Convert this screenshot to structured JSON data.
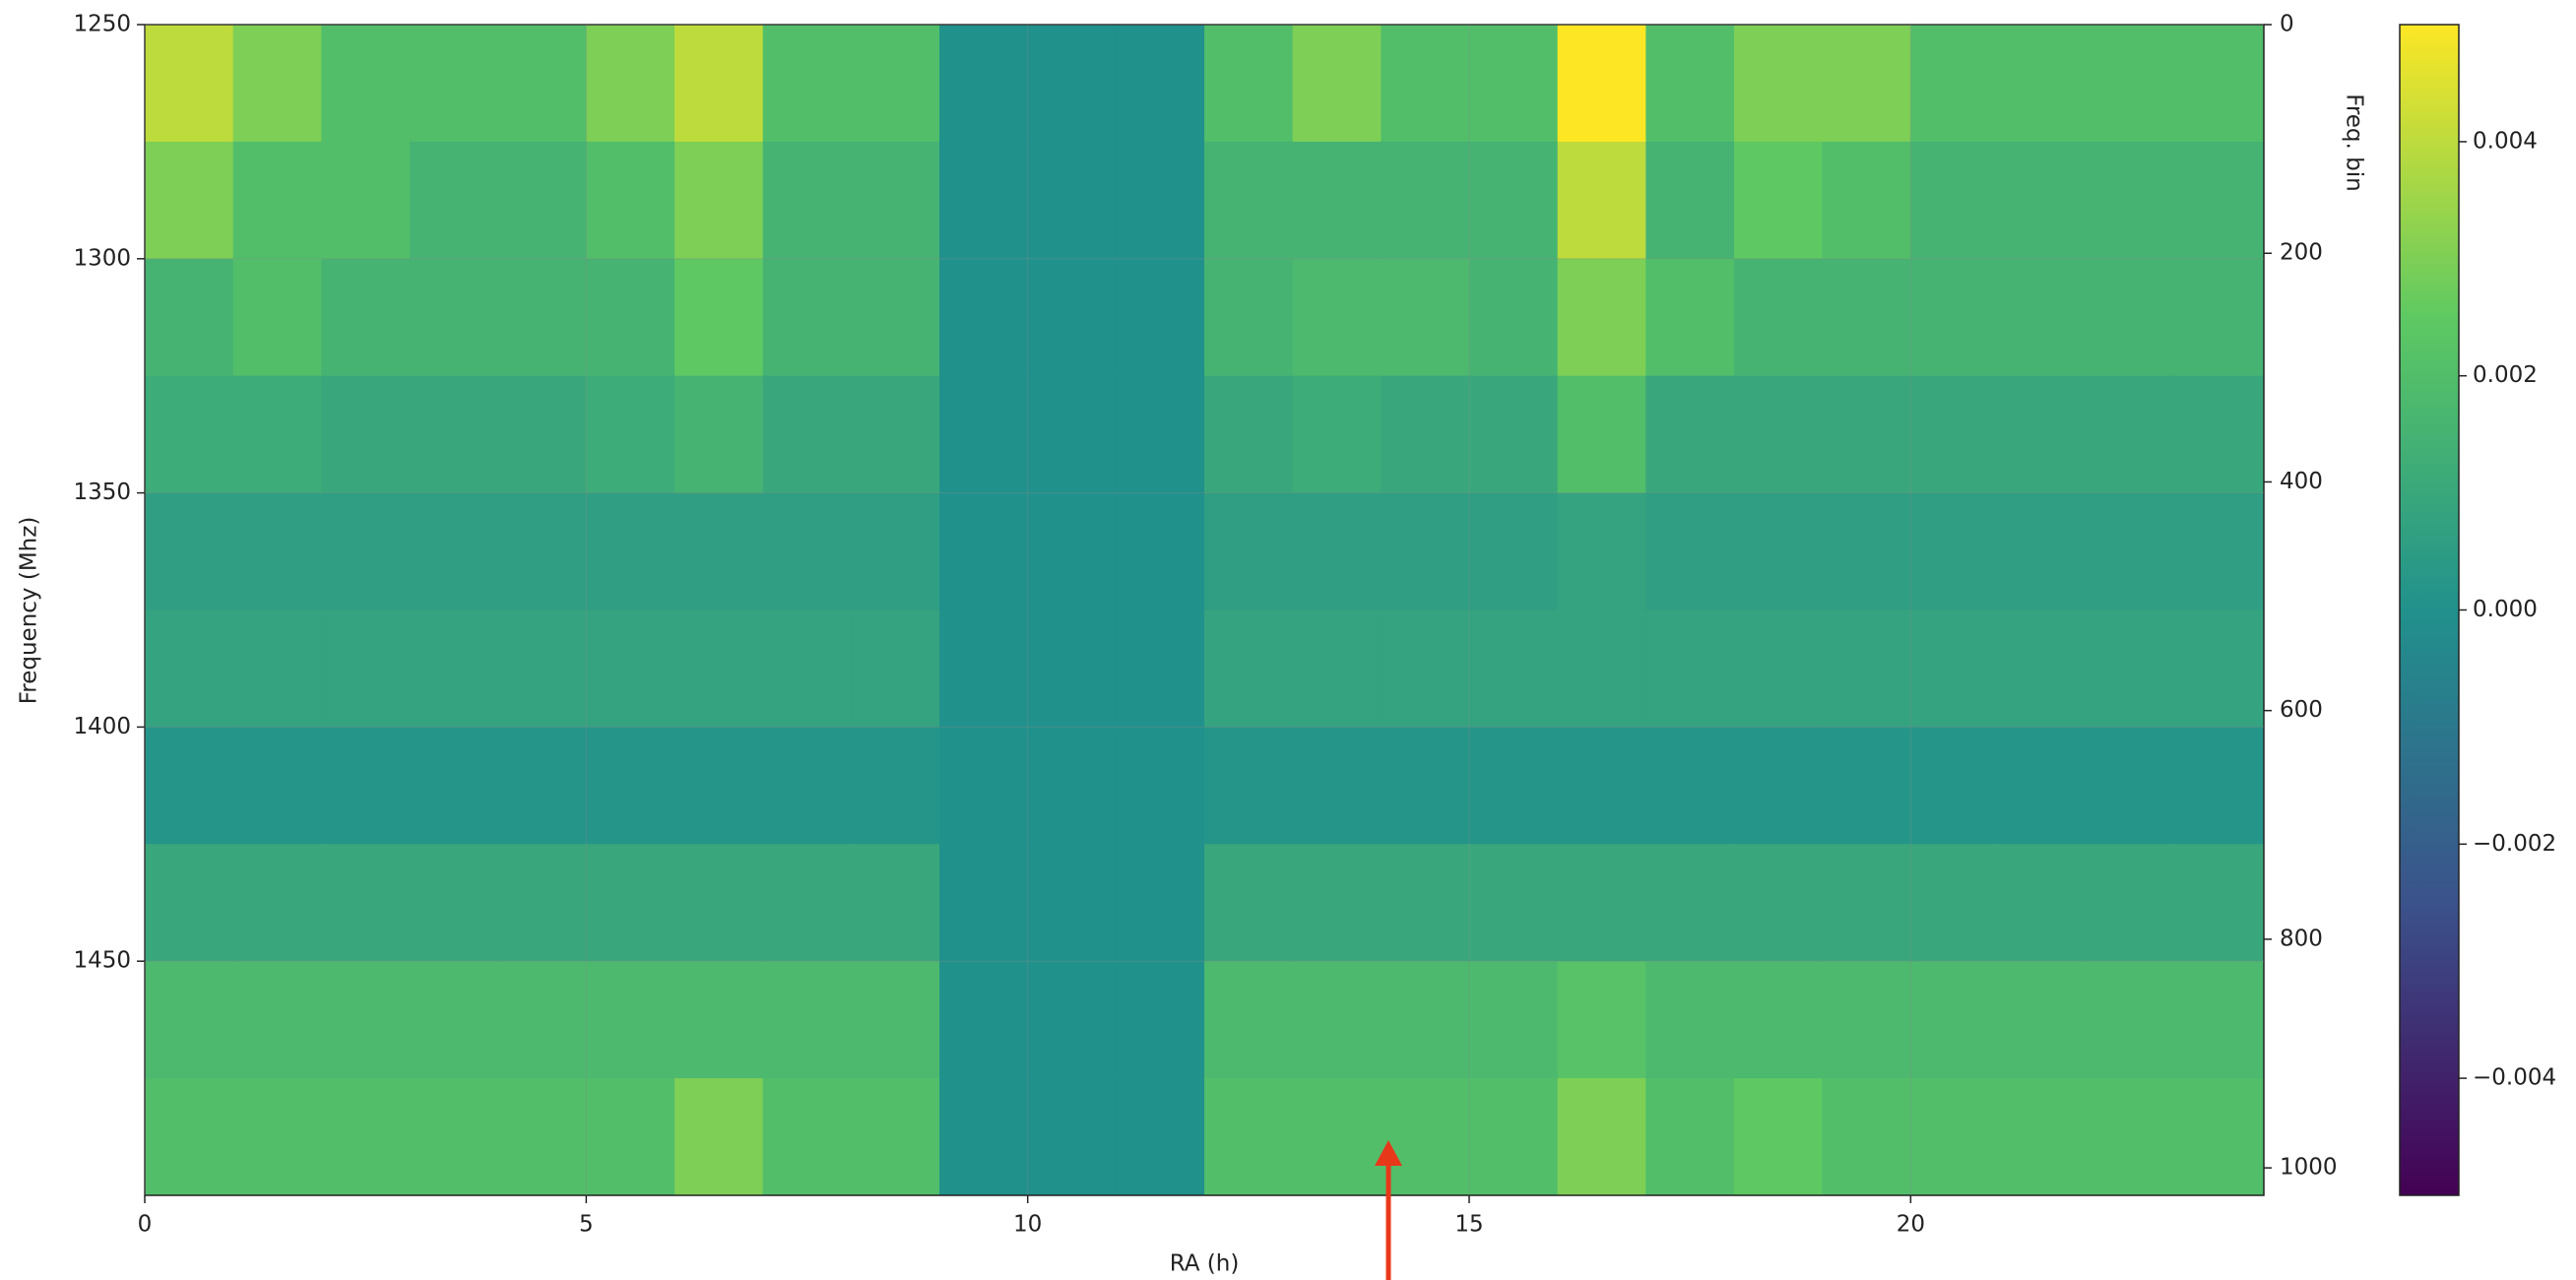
{
  "chart_data": {
    "type": "heatmap",
    "colormap": "viridis",
    "xlabel": "RA (h)",
    "ylabel": "Frequency (Mhz)",
    "y2label": "Freq. bin",
    "xlim": [
      0,
      24
    ],
    "ylim": [
      1500,
      1250
    ],
    "y2lim": [
      1024,
      0
    ],
    "clim": [
      -0.005,
      0.005
    ],
    "xticks": [
      0,
      5,
      10,
      15,
      20
    ],
    "yticks": [
      1250,
      1300,
      1350,
      1400,
      1450
    ],
    "y2ticks": [
      0,
      200,
      400,
      600,
      800,
      1000
    ],
    "cticks": [
      {
        "value": 0.004,
        "label": "0.004"
      },
      {
        "value": 0.002,
        "label": "0.002"
      },
      {
        "value": 0,
        "label": "0.000"
      },
      {
        "value": -0.002,
        "label": "−0.002"
      },
      {
        "value": -0.004,
        "label": "−0.004"
      }
    ],
    "grid": true,
    "x_bins": [
      0,
      1,
      2,
      3,
      4,
      5,
      6,
      7,
      8,
      9,
      10,
      11,
      12,
      13,
      14,
      15,
      16,
      17,
      18,
      19,
      20,
      21,
      22,
      23,
      24
    ],
    "y_bins": [
      1250,
      1275,
      1300,
      1325,
      1350,
      1375,
      1400,
      1425,
      1450,
      1475,
      1500
    ],
    "z": [
      [
        0.004,
        0.003,
        0.002,
        0.002,
        0.002,
        0.003,
        0.004,
        0.002,
        0.002,
        0,
        0,
        0,
        0.002,
        0.003,
        0.002,
        0.002,
        0.005,
        0.002,
        0.003,
        0.003,
        0.002,
        0.002,
        0.002,
        0.002
      ],
      [
        0.003,
        0.002,
        0.002,
        0.0015,
        0.0015,
        0.002,
        0.003,
        0.0015,
        0.0015,
        0,
        0,
        0,
        0.0015,
        0.0015,
        0.0015,
        0.0015,
        0.004,
        0.0015,
        0.0025,
        0.002,
        0.0015,
        0.0015,
        0.0015,
        0.0015
      ],
      [
        0.0015,
        0.002,
        0.0015,
        0.0015,
        0.0015,
        0.0015,
        0.0025,
        0.0015,
        0.0015,
        0,
        0,
        0,
        0.0015,
        0.0018,
        0.0018,
        0.0015,
        0.003,
        0.002,
        0.0015,
        0.0015,
        0.0015,
        0.0015,
        0.0015,
        0.0015
      ],
      [
        0.0012,
        0.0012,
        0.001,
        0.001,
        0.001,
        0.0012,
        0.0015,
        0.001,
        0.001,
        0,
        0,
        0,
        0.001,
        0.0012,
        0.001,
        0.001,
        0.002,
        0.001,
        0.001,
        0.001,
        0.001,
        0.001,
        0.001,
        0.001
      ],
      [
        0.0006,
        0.0006,
        0.0006,
        0.0006,
        0.0006,
        0.0006,
        0.0006,
        0.0006,
        0.0006,
        0,
        0,
        0,
        0.0006,
        0.0006,
        0.0006,
        0.0006,
        0.0008,
        0.0006,
        0.0006,
        0.0006,
        0.0006,
        0.0006,
        0.0006,
        0.0006
      ],
      [
        0.0008,
        0.0008,
        0.0008,
        0.0008,
        0.0008,
        0.0008,
        0.0008,
        0.0008,
        0.0008,
        0,
        0,
        0,
        0.0008,
        0.0008,
        0.0008,
        0.0008,
        0.0008,
        0.0008,
        0.0008,
        0.0008,
        0.0008,
        0.0008,
        0.0008,
        0.0008
      ],
      [
        0.0002,
        0.0002,
        0.0002,
        0.0002,
        0.0002,
        0.0002,
        0.0002,
        0.0002,
        0.0002,
        0,
        0,
        0,
        0.0002,
        0.0002,
        0.0002,
        0.0002,
        0.0002,
        0.0002,
        0.0002,
        0.0002,
        0.0002,
        0.0002,
        0.0002,
        0.0002
      ],
      [
        0.001,
        0.001,
        0.001,
        0.001,
        0.001,
        0.001,
        0.001,
        0.001,
        0.001,
        0,
        0,
        0,
        0.001,
        0.001,
        0.001,
        0.001,
        0.001,
        0.001,
        0.001,
        0.001,
        0.001,
        0.001,
        0.001,
        0.001
      ],
      [
        0.0018,
        0.0018,
        0.0018,
        0.0018,
        0.0018,
        0.0018,
        0.0018,
        0.0018,
        0.0018,
        0,
        0,
        0,
        0.0018,
        0.0018,
        0.0018,
        0.0018,
        0.0022,
        0.0018,
        0.0018,
        0.0018,
        0.0018,
        0.0018,
        0.0018,
        0.0018
      ],
      [
        0.002,
        0.002,
        0.002,
        0.002,
        0.002,
        0.002,
        0.003,
        0.002,
        0.002,
        0,
        0,
        0,
        0.002,
        0.002,
        0.002,
        0.002,
        0.003,
        0.002,
        0.0025,
        0.002,
        0.002,
        0.002,
        0.002,
        0.002
      ]
    ]
  }
}
